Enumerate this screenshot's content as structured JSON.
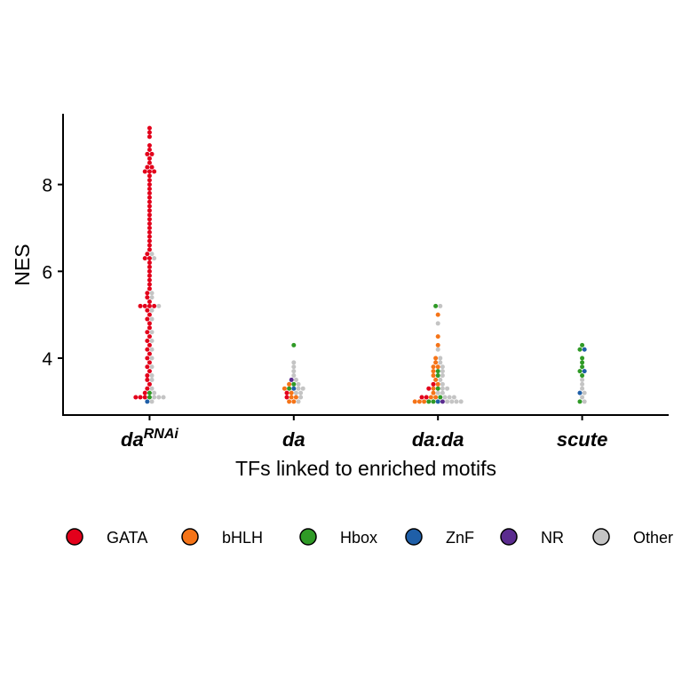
{
  "chart_data": {
    "type": "dotplot",
    "x_label": "TFs linked to enriched motifs",
    "y_label": "NES",
    "categories": [
      "da",
      "da",
      "da:da",
      "scute"
    ],
    "category_superscripts": [
      "RNAi",
      null,
      null,
      null
    ],
    "ylim": [
      2.69,
      9.63
    ],
    "yticks": [
      4,
      6,
      8
    ],
    "binwidth": 0.1,
    "series": [
      {
        "name": "GATA",
        "color": "#e3001b",
        "values": [
          [
            9.3,
            9.2,
            9.1,
            8.9,
            8.8,
            8.7,
            8.7,
            8.6,
            8.5,
            8.4,
            8.4,
            8.3,
            8.3,
            8.3,
            8.2,
            8.1,
            8.0,
            7.9,
            7.8,
            7.7,
            7.6,
            7.5,
            7.4,
            7.3,
            7.2,
            7.1,
            7.0,
            6.9,
            6.8,
            6.7,
            6.6,
            6.5,
            6.4,
            6.3,
            6.3,
            6.2,
            6.1,
            6.0,
            5.9,
            5.8,
            5.7,
            5.6,
            5.5,
            5.4,
            5.3,
            5.2,
            5.2,
            5.2,
            5.2,
            5.1,
            5.0,
            4.9,
            4.8,
            4.7,
            4.6,
            4.5,
            4.4,
            4.3,
            4.2,
            4.1,
            4.0,
            3.9,
            3.8,
            3.7,
            3.6,
            3.5,
            3.4,
            3.3,
            3.2,
            3.1,
            3.1,
            3.1
          ],
          [
            3.2,
            3.1
          ],
          [
            3.4,
            3.3,
            3.1,
            3.1
          ],
          []
        ]
      },
      {
        "name": "bHLH",
        "color": "#f57418",
        "values": [
          [],
          [
            3.0,
            3.1,
            3.2,
            3.3,
            3.4,
            3.0,
            3.1
          ],
          [
            5.0,
            4.5,
            4.3,
            4.0,
            3.9,
            3.8,
            3.8,
            3.7,
            3.6,
            3.5,
            3.4,
            3.3,
            3.2,
            3.1,
            3.0,
            3.0,
            3.0,
            3.1
          ],
          []
        ]
      },
      {
        "name": "Hbox",
        "color": "#2f9a26",
        "values": [
          [
            3.2,
            3.1
          ],
          [
            4.3,
            3.4,
            3.3
          ],
          [
            5.2,
            3.7,
            3.6,
            3.3,
            3.1,
            3.0,
            3.0
          ],
          [
            4.3,
            4.2,
            4.0,
            3.9,
            3.8,
            3.7,
            3.6,
            3.0
          ]
        ]
      },
      {
        "name": "ZnF",
        "color": "#1f5fa8",
        "values": [
          [
            3.0
          ],
          [
            3.3
          ],
          [
            3.0
          ],
          [
            4.2,
            3.7,
            3.2
          ]
        ]
      },
      {
        "name": "NR",
        "color": "#5b2c8f",
        "values": [
          [],
          [
            3.5
          ],
          [
            3.0
          ],
          []
        ]
      },
      {
        "name": "Other",
        "color": "#c4c4c4",
        "values": [
          [
            6.4,
            6.3,
            5.5,
            5.4,
            5.2,
            5.1,
            4.9,
            4.6,
            4.4,
            4.2,
            4.0,
            3.8,
            3.6,
            3.5,
            3.3,
            3.2,
            3.1,
            3.1,
            3.1,
            3.0
          ],
          [
            3.9,
            3.8,
            3.7,
            3.6,
            3.5,
            3.4,
            3.3,
            3.2,
            3.1,
            3.0,
            3.2,
            3.3
          ],
          [
            5.2,
            4.8,
            4.2,
            4.0,
            3.9,
            3.8,
            3.7,
            3.6,
            3.5,
            3.4,
            3.3,
            3.2,
            3.1,
            3.1,
            3.1,
            3.0,
            3.0,
            3.0,
            3.0,
            3.2,
            3.3
          ],
          [
            3.5,
            3.4,
            3.3,
            3.2,
            3.1,
            3.0
          ]
        ]
      }
    ]
  }
}
